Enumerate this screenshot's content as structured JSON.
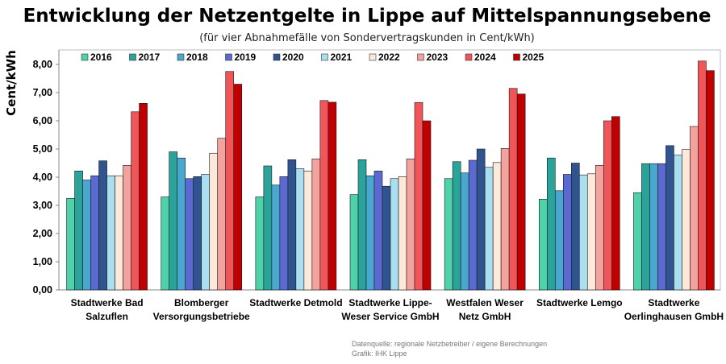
{
  "chart_data": {
    "type": "bar",
    "title": "Entwicklung der Netzentgelte in Lippe auf Mittelspannungsebene",
    "subtitle": "(für vier Abnahmefälle von Sondervertragskunden in Cent/kWh)",
    "xlabel": "",
    "ylabel": "Cent/kWh",
    "ylim": [
      0,
      8.5
    ],
    "yticks": [
      "0,00",
      "1,00",
      "2,00",
      "3,00",
      "4,00",
      "5,00",
      "6,00",
      "7,00",
      "8,00"
    ],
    "grid": false,
    "legend_position": "top",
    "categories": [
      [
        "Stadtwerke Bad",
        "Salzuflen"
      ],
      [
        "Blomberger",
        "Versorgungsbetriebe"
      ],
      [
        "Stadtwerke Detmold"
      ],
      [
        "Stadtwerke Lippe-",
        "Weser Service GmbH"
      ],
      [
        "Westfalen Weser",
        "Netz GmbH"
      ],
      [
        "Stadtwerke Lemgo"
      ],
      [
        "Stadtwerke",
        "Oerlinghausen GmbH"
      ]
    ],
    "series": [
      {
        "name": "2016",
        "color": "#4fd1a9",
        "values": [
          3.25,
          3.3,
          3.3,
          3.38,
          3.95,
          3.22,
          3.45
        ]
      },
      {
        "name": "2017",
        "color": "#2aa39b",
        "values": [
          4.22,
          4.9,
          4.4,
          4.62,
          4.55,
          4.68,
          4.48
        ]
      },
      {
        "name": "2018",
        "color": "#4aa8d0",
        "values": [
          3.9,
          4.68,
          3.72,
          4.05,
          4.15,
          3.52,
          4.48
        ]
      },
      {
        "name": "2019",
        "color": "#5a6ad0",
        "values": [
          4.05,
          3.95,
          4.02,
          4.22,
          4.6,
          4.1,
          4.48
        ]
      },
      {
        "name": "2020",
        "color": "#2f5490",
        "values": [
          4.58,
          4.02,
          4.62,
          3.68,
          5.0,
          4.5,
          5.12
        ]
      },
      {
        "name": "2021",
        "color": "#a9dff0",
        "values": [
          4.05,
          4.1,
          4.3,
          3.95,
          4.35,
          4.08,
          4.78
        ]
      },
      {
        "name": "2022",
        "color": "#fde9da",
        "values": [
          4.05,
          4.85,
          4.22,
          4.02,
          4.52,
          4.12,
          4.98
        ]
      },
      {
        "name": "2023",
        "color": "#f4a29d",
        "values": [
          4.42,
          5.38,
          4.65,
          4.65,
          5.02,
          4.42,
          5.8
        ]
      },
      {
        "name": "2024",
        "color": "#f0555a",
        "values": [
          6.32,
          7.75,
          6.72,
          6.65,
          7.15,
          6.0,
          8.12
        ]
      },
      {
        "name": "2025",
        "color": "#c00000",
        "values": [
          6.62,
          7.3,
          6.66,
          6.0,
          6.95,
          6.15,
          7.78
        ]
      }
    ]
  },
  "source": {
    "line1": "Datenquelle: regionale Netzbetreiber / eigene Berechnungen",
    "line2": "Grafik: IHK Lippe"
  }
}
